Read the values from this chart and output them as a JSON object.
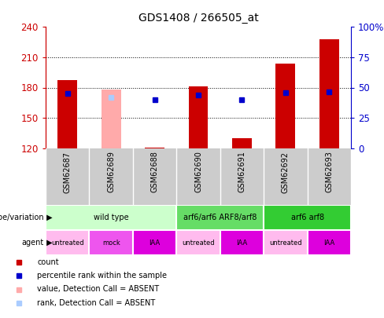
{
  "title": "GDS1408 / 266505_at",
  "samples": [
    "GSM62687",
    "GSM62689",
    "GSM62688",
    "GSM62690",
    "GSM62691",
    "GSM62692",
    "GSM62693"
  ],
  "count_values": [
    187,
    null,
    121,
    181,
    130,
    204,
    228
  ],
  "absent_value": [
    null,
    178,
    null,
    null,
    null,
    null,
    null
  ],
  "percentile_values": [
    174,
    null,
    168,
    173,
    168,
    175,
    176
  ],
  "absent_rank": [
    null,
    170,
    null,
    null,
    null,
    null,
    null
  ],
  "ylim_left": [
    120,
    240
  ],
  "ylim_right": [
    0,
    100
  ],
  "left_ticks": [
    120,
    150,
    180,
    210,
    240
  ],
  "right_ticks": [
    0,
    25,
    50,
    75,
    100
  ],
  "left_tick_labels": [
    "120",
    "150",
    "180",
    "210",
    "240"
  ],
  "right_tick_labels": [
    "0",
    "25",
    "50",
    "75",
    "100%"
  ],
  "genotype_groups": [
    {
      "label": "wild type",
      "start": 0,
      "end": 3,
      "color": "#ccffcc"
    },
    {
      "label": "arf6/arf6 ARF8/arf8",
      "start": 3,
      "end": 5,
      "color": "#66dd66"
    },
    {
      "label": "arf6 arf8",
      "start": 5,
      "end": 7,
      "color": "#33cc33"
    }
  ],
  "agent_labels": [
    "untreated",
    "mock",
    "IAA",
    "untreated",
    "IAA",
    "untreated",
    "IAA"
  ],
  "agent_colors": [
    "#ffbbee",
    "#ee55ee",
    "#dd00dd",
    "#ffbbee",
    "#dd00dd",
    "#ffbbee",
    "#dd00dd"
  ],
  "count_color": "#cc0000",
  "percentile_color": "#0000cc",
  "absent_value_color": "#ffaaaa",
  "absent_rank_color": "#aaccff",
  "bar_width": 0.45,
  "marker_size": 5,
  "gridline_color": "#000000",
  "sample_bg_color": "#cccccc",
  "border_color": "#ffffff"
}
